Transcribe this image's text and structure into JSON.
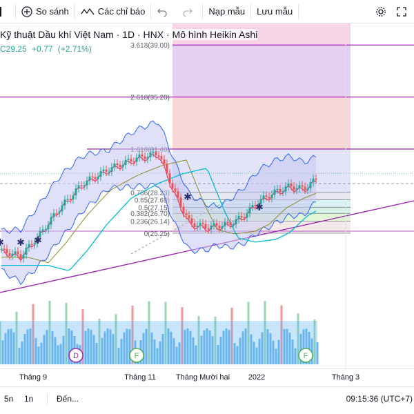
{
  "toolbar": {
    "compare_label": "So sánh",
    "indicators_label": "Các chỉ báo",
    "load_template_label": "Nạp mẫu",
    "save_template_label": "Lưu mẫu"
  },
  "header": {
    "title": "Kỹ thuật Dầu khí Việt Nam",
    "interval": "1D",
    "exchange": "HNX",
    "style": "Mô hình Heikin Ashi",
    "close": "C29.25",
    "change": "+0.77",
    "change_pct": "(+2.71%)"
  },
  "colors": {
    "up": "#26a69a",
    "down": "#ef5350",
    "fib_line": "#9c27b0",
    "bollinger": "#2962ff",
    "trendline": "#9c27b0"
  },
  "chart_data": {
    "type": "candlestick",
    "style": "Heikin Ashi",
    "interval": "1D",
    "fib_levels": [
      {
        "ratio": "3.618",
        "price": "39.00"
      },
      {
        "ratio": "2.618",
        "price": "35.20"
      },
      {
        "ratio": "1.618",
        "price": "31.40"
      },
      {
        "ratio": "0.786",
        "price": "28.23"
      },
      {
        "ratio": "0.65",
        "price": "27.69"
      },
      {
        "ratio": "0.5",
        "price": "27.15"
      },
      {
        "ratio": "0.382",
        "price": "26.70"
      },
      {
        "ratio": "0.236",
        "price": "26.14"
      },
      {
        "ratio": "0",
        "price": "25.25"
      }
    ],
    "fib_labels": [
      "3.618(39.00)",
      "2.618(35.20)",
      "1.618(31.40)",
      "0.786(28.23)",
      "0.65(27.69)",
      "0.5(27.15)",
      "0.382(26.70)",
      "0.236(26.14)",
      "0(25.25)"
    ],
    "x_tick_labels": [
      "Tháng 9",
      "Tháng 11",
      "Tháng Mười hai",
      "2022",
      "Tháng 3"
    ],
    "event_markers": [
      "D",
      "F",
      "F"
    ],
    "last_close": 29.25,
    "change": 0.77,
    "change_pct": 2.71
  },
  "bottom": {
    "range_5d": "5n",
    "range_1m": "1n",
    "goto": "Đến...",
    "clock": "09:15:36 (UTC+7)"
  }
}
